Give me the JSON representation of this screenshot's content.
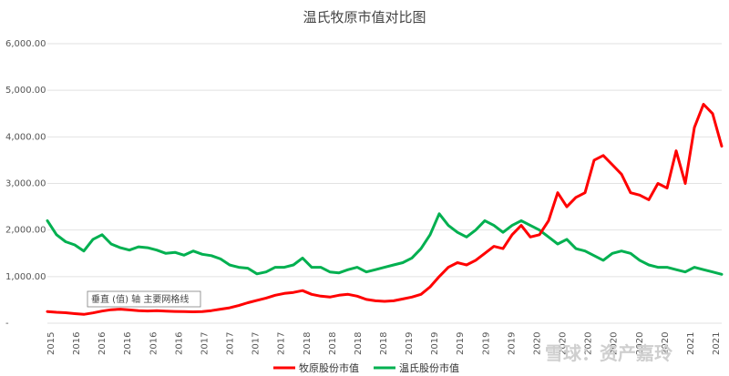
{
  "chart_data": {
    "type": "line",
    "title": "温氏牧原市值对比图",
    "ylim": [
      0,
      6000
    ],
    "y_ticks": [
      "-",
      "1,000.00",
      "2,000.00",
      "3,000.00",
      "4,000.00",
      "5,000.00",
      "6,000.00"
    ],
    "x_tick_labels": [
      "2015",
      "2016",
      "2016",
      "2016",
      "2016",
      "2016",
      "2017",
      "2017",
      "2017",
      "2017",
      "2018",
      "2018",
      "2018",
      "2018",
      "2019",
      "2019",
      "2019",
      "2019",
      "2019",
      "2020",
      "2020",
      "2020",
      "2020",
      "2020",
      "2020",
      "2021",
      "2021"
    ],
    "grid": "horizontal",
    "legend_position": "bottom",
    "series": [
      {
        "name": "牧原股份市值",
        "color": "#ff0000",
        "values": [
          250,
          235,
          225,
          205,
          190,
          220,
          260,
          290,
          300,
          285,
          270,
          262,
          268,
          258,
          252,
          248,
          245,
          250,
          270,
          300,
          330,
          380,
          440,
          490,
          540,
          600,
          640,
          660,
          700,
          620,
          580,
          560,
          600,
          620,
          580,
          510,
          480,
          470,
          480,
          520,
          560,
          620,
          780,
          1000,
          1200,
          1300,
          1250,
          1350,
          1500,
          1650,
          1600,
          1900,
          2100,
          1850,
          1900,
          2200,
          2800,
          2500,
          2700,
          2800,
          3500,
          3600,
          3400,
          3200,
          2800,
          2750,
          2650,
          3000,
          2900,
          3700,
          3000,
          4200,
          4700,
          4500,
          3800
        ]
      },
      {
        "name": "温氏股份市值",
        "color": "#00b050",
        "values": [
          2200,
          1900,
          1750,
          1680,
          1550,
          1800,
          1900,
          1700,
          1620,
          1570,
          1640,
          1620,
          1570,
          1500,
          1520,
          1460,
          1550,
          1480,
          1450,
          1380,
          1250,
          1200,
          1180,
          1060,
          1100,
          1200,
          1200,
          1250,
          1400,
          1200,
          1200,
          1100,
          1080,
          1150,
          1200,
          1100,
          1150,
          1200,
          1250,
          1300,
          1400,
          1600,
          1900,
          2350,
          2100,
          1950,
          1850,
          2000,
          2200,
          2100,
          1950,
          2100,
          2200,
          2100,
          2000,
          1850,
          1700,
          1800,
          1600,
          1550,
          1450,
          1350,
          1500,
          1550,
          1500,
          1350,
          1250,
          1200,
          1200,
          1150,
          1100,
          1200,
          1150,
          1100,
          1050
        ]
      }
    ]
  },
  "tooltip_text": "垂直 (值) 轴 主要网格线",
  "watermark_text": "雪球：资产嘉玲"
}
